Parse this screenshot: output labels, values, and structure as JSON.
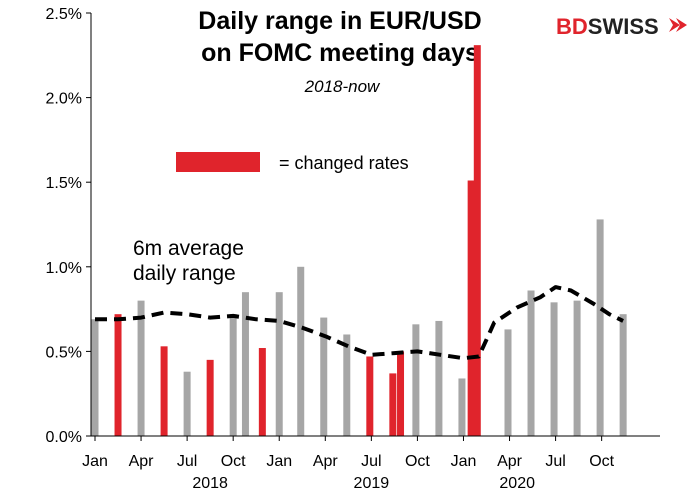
{
  "chart_data": {
    "type": "bar",
    "title_lines": [
      "Daily range in EUR/USD",
      "on FOMC  meeting days"
    ],
    "subtitle": "2018-now",
    "brand": {
      "part1": "BD",
      "part2": "SWISS",
      "color1": "#e0242c",
      "color2": "#222222"
    },
    "legend": {
      "label": "= changed rates",
      "color": "#e0242c"
    },
    "annotation_lines": [
      "6m average",
      "daily range"
    ],
    "ylim": [
      0,
      2.5
    ],
    "yticks": [
      "0.0%",
      "0.5%",
      "1.0%",
      "1.5%",
      "2.0%",
      "2.5%"
    ],
    "xlim": [
      0,
      34
    ],
    "month_labels": [
      {
        "x": 0,
        "label": "Jan"
      },
      {
        "x": 3,
        "label": "Apr"
      },
      {
        "x": 6,
        "label": "Jul"
      },
      {
        "x": 9,
        "label": "Oct"
      },
      {
        "x": 12,
        "label": "Jan"
      },
      {
        "x": 15,
        "label": "Apr"
      },
      {
        "x": 18,
        "label": "Jul"
      },
      {
        "x": 21,
        "label": "Oct"
      },
      {
        "x": 24,
        "label": "Jan"
      },
      {
        "x": 27,
        "label": "Apr"
      },
      {
        "x": 30,
        "label": "Jul"
      },
      {
        "x": 33,
        "label": "Oct"
      }
    ],
    "year_labels": [
      {
        "x": 7.5,
        "label": "2018"
      },
      {
        "x": 18,
        "label": "2019"
      },
      {
        "x": 27.5,
        "label": "2020"
      }
    ],
    "colors": {
      "unchanged": "#a6a6a6",
      "changed": "#e0242c",
      "average": "#000000"
    },
    "series": [
      {
        "name": "Daily range",
        "points": [
          {
            "x": 0.0,
            "value": 0.69,
            "changed": false
          },
          {
            "x": 1.5,
            "value": 0.72,
            "changed": true
          },
          {
            "x": 3.0,
            "value": 0.8,
            "changed": false
          },
          {
            "x": 4.5,
            "value": 0.53,
            "changed": true
          },
          {
            "x": 6.0,
            "value": 0.38,
            "changed": false
          },
          {
            "x": 7.5,
            "value": 0.45,
            "changed": true
          },
          {
            "x": 9.0,
            "value": 0.72,
            "changed": false
          },
          {
            "x": 9.8,
            "value": 0.85,
            "changed": false
          },
          {
            "x": 10.9,
            "value": 0.52,
            "changed": true
          },
          {
            "x": 12.0,
            "value": 0.85,
            "changed": false
          },
          {
            "x": 13.4,
            "value": 1.0,
            "changed": false
          },
          {
            "x": 14.9,
            "value": 0.7,
            "changed": false
          },
          {
            "x": 16.4,
            "value": 0.6,
            "changed": false
          },
          {
            "x": 17.9,
            "value": 0.47,
            "changed": true
          },
          {
            "x": 19.4,
            "value": 0.37,
            "changed": true
          },
          {
            "x": 19.9,
            "value": 0.5,
            "changed": true
          },
          {
            "x": 20.9,
            "value": 0.66,
            "changed": false
          },
          {
            "x": 22.4,
            "value": 0.68,
            "changed": false
          },
          {
            "x": 23.9,
            "value": 0.34,
            "changed": false
          },
          {
            "x": 24.5,
            "value": 1.51,
            "changed": true
          },
          {
            "x": 24.9,
            "value": 2.31,
            "changed": true
          },
          {
            "x": 26.9,
            "value": 0.63,
            "changed": false
          },
          {
            "x": 28.4,
            "value": 0.86,
            "changed": false
          },
          {
            "x": 29.9,
            "value": 0.79,
            "changed": false
          },
          {
            "x": 31.4,
            "value": 0.8,
            "changed": false
          },
          {
            "x": 32.9,
            "value": 1.28,
            "changed": false
          },
          {
            "x": 34.4,
            "value": 0.72,
            "changed": false
          }
        ]
      },
      {
        "name": "6m average daily range",
        "points": [
          {
            "x": 0.0,
            "value": 0.69
          },
          {
            "x": 1.5,
            "value": 0.69
          },
          {
            "x": 3.0,
            "value": 0.7
          },
          {
            "x": 4.5,
            "value": 0.73
          },
          {
            "x": 6.0,
            "value": 0.72
          },
          {
            "x": 7.5,
            "value": 0.7
          },
          {
            "x": 9.0,
            "value": 0.71
          },
          {
            "x": 10.5,
            "value": 0.69
          },
          {
            "x": 12.0,
            "value": 0.68
          },
          {
            "x": 13.5,
            "value": 0.64
          },
          {
            "x": 15.0,
            "value": 0.59
          },
          {
            "x": 16.5,
            "value": 0.53
          },
          {
            "x": 18.0,
            "value": 0.48
          },
          {
            "x": 19.5,
            "value": 0.49
          },
          {
            "x": 21.0,
            "value": 0.5
          },
          {
            "x": 22.5,
            "value": 0.48
          },
          {
            "x": 24.0,
            "value": 0.46
          },
          {
            "x": 25.0,
            "value": 0.47
          },
          {
            "x": 26.0,
            "value": 0.67
          },
          {
            "x": 27.5,
            "value": 0.76
          },
          {
            "x": 29.0,
            "value": 0.82
          },
          {
            "x": 30.0,
            "value": 0.88
          },
          {
            "x": 31.0,
            "value": 0.86
          },
          {
            "x": 32.5,
            "value": 0.78
          },
          {
            "x": 33.5,
            "value": 0.72
          },
          {
            "x": 34.4,
            "value": 0.68
          }
        ]
      }
    ]
  }
}
